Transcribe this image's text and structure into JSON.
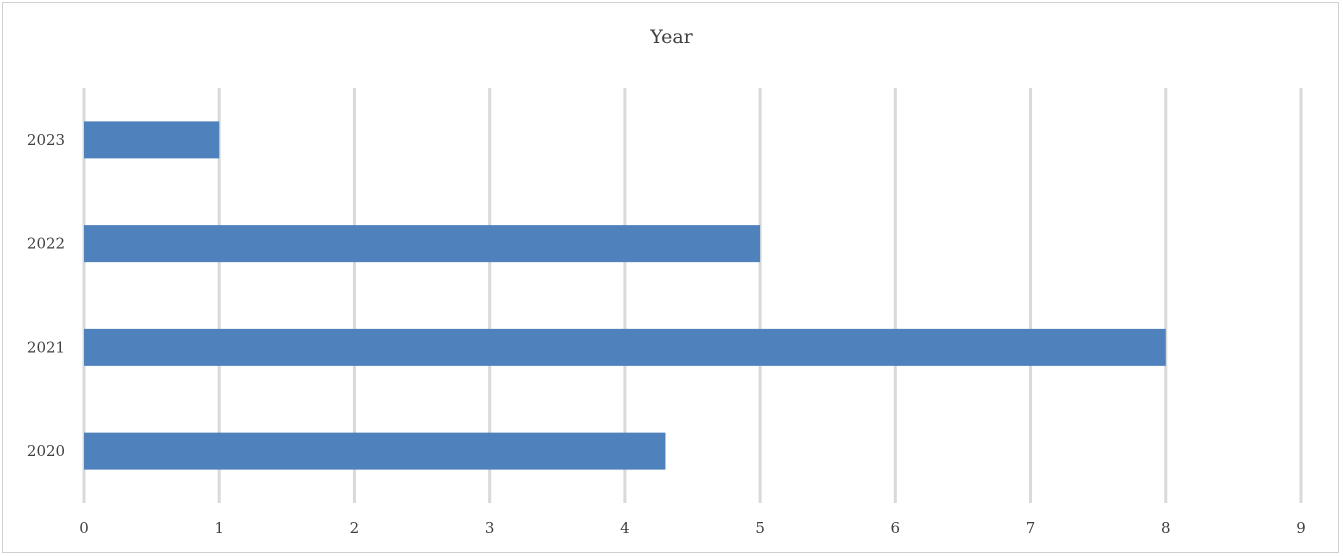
{
  "chart_data": {
    "type": "bar",
    "orientation": "horizontal",
    "title": "Year",
    "categories": [
      "2020",
      "2021",
      "2022",
      "2023"
    ],
    "values": [
      4.3,
      8,
      5,
      1
    ],
    "xlim": [
      0,
      9
    ],
    "xticks": [
      "0",
      "1",
      "2",
      "3",
      "4",
      "5",
      "6",
      "7",
      "8",
      "9"
    ],
    "xlabel": "",
    "ylabel": "",
    "grid": "vertical",
    "legend": "none",
    "bar_color": "#4f81bd",
    "grid_color": "#d9d9d9"
  }
}
